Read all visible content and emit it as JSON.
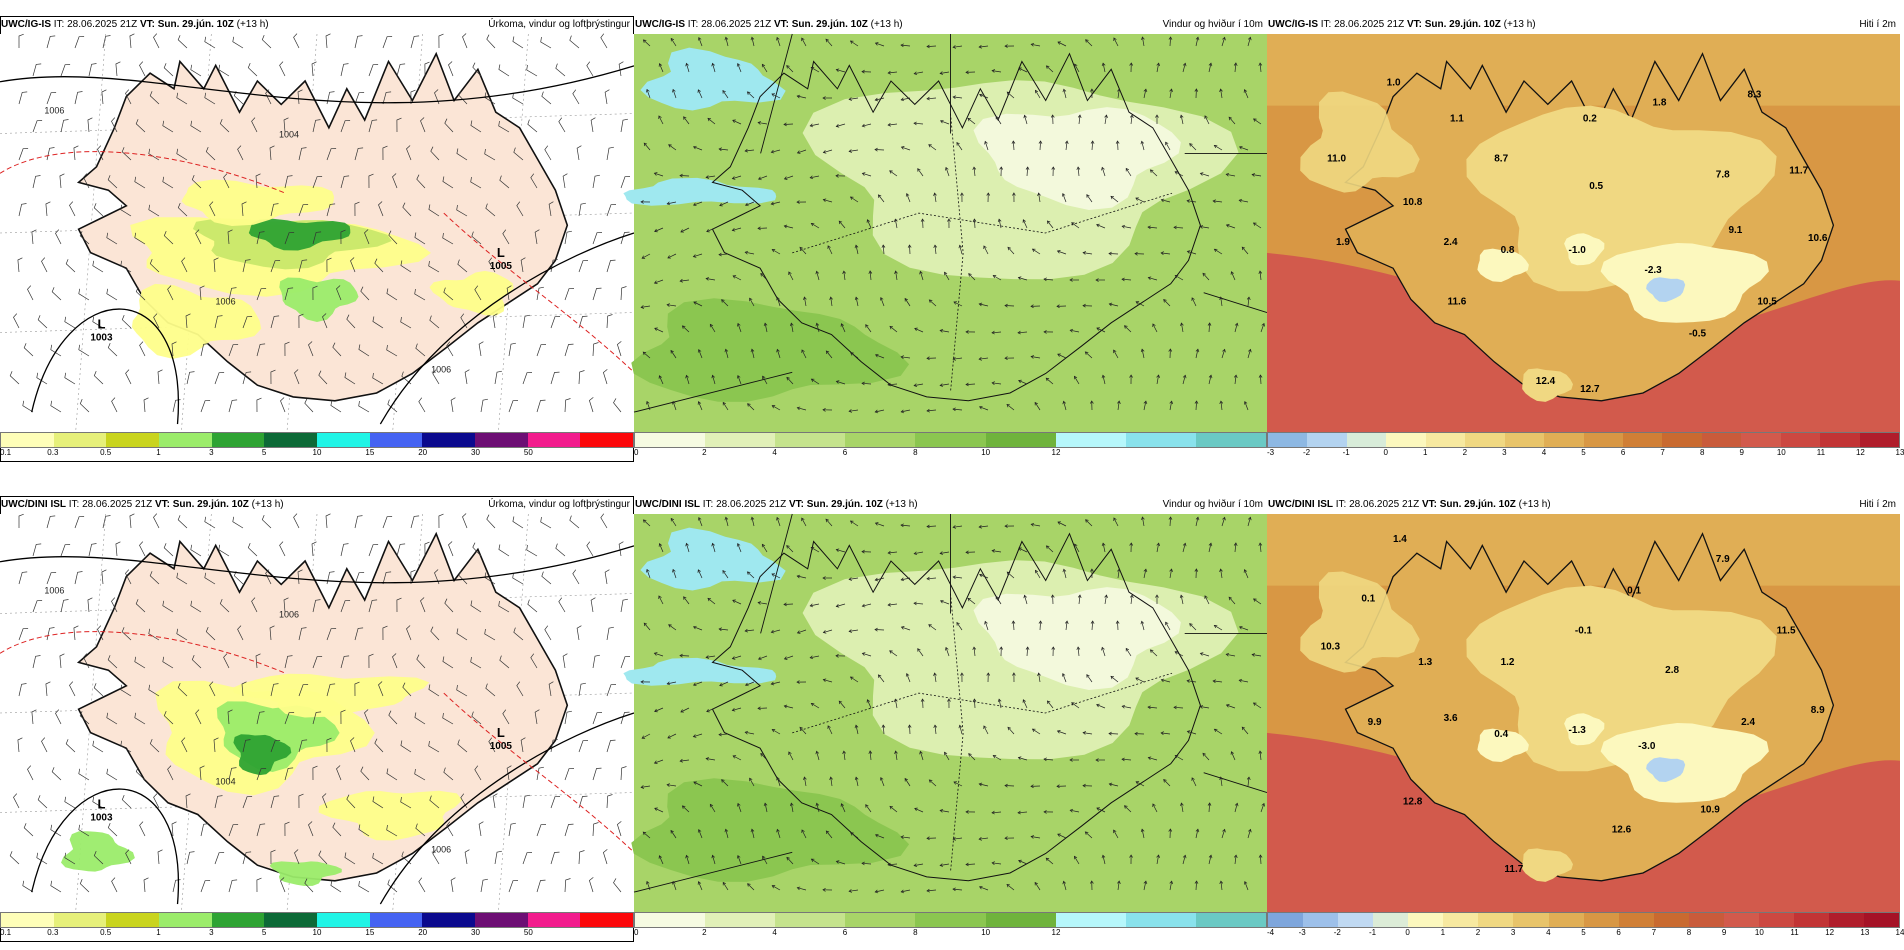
{
  "panels": [
    {
      "id": "p1",
      "header_left_model": "UWC/IG-IS",
      "header_left_rest": " IT: 28.06.2025 21Z ",
      "header_vt_label": "VT: Sun. 29.jún. 10Z",
      "header_lead": " (+13 h)",
      "header_right": "Úrkoma, vindur og loftþrýstingur",
      "type": "precip",
      "colorbar": {
        "colors": [
          "#fefeb8",
          "#e6f07a",
          "#c9d41e",
          "#9bec6a",
          "#2ea333",
          "#0d6a37",
          "#20f4e6",
          "#4563f2",
          "#0b0a8e",
          "#6d0e74",
          "#f21c8d",
          "#fc0709"
        ],
        "ticks": [
          "0.1",
          "0.3",
          "0.5",
          "1",
          "3",
          "5",
          "10",
          "15",
          "20",
          "30",
          "50"
        ]
      },
      "lows": [
        {
          "label": "L",
          "value": "1003"
        },
        {
          "label": "L",
          "value": "1005"
        }
      ],
      "isobars": [
        "1006",
        "1004",
        "1006",
        "1006"
      ]
    },
    {
      "id": "p2",
      "header_left_model": "UWC/IG-IS",
      "header_left_rest": " IT: 28.06.2025 21Z ",
      "header_vt_label": "VT: Sun. 29.jún. 10Z",
      "header_lead": " (+13 h)",
      "header_right": "Vindur og hviður í 10m",
      "type": "wind",
      "colorbar": {
        "colors": [
          "#f6fbe2",
          "#e1f0b8",
          "#c5e38d",
          "#a8d468",
          "#8bc650",
          "#6fb33c",
          "#b6f7fb",
          "#89e2ec",
          "#6ac9c4"
        ],
        "ticks": [
          "0",
          "2",
          "4",
          "6",
          "8",
          "10",
          "12"
        ]
      }
    },
    {
      "id": "p3",
      "header_left_model": "UWC/IG-IS",
      "header_left_rest": " IT: 28.06.2025 21Z ",
      "header_vt_label": "VT: Sun. 29.jún. 10Z",
      "header_lead": " (+13 h)",
      "header_right": "Hiti í 2m",
      "type": "temp",
      "colorbar": {
        "colors": [
          "#8db8e3",
          "#b3d3f0",
          "#d8ecd9",
          "#fcf8be",
          "#f7e9a0",
          "#f0d882",
          "#e8c46a",
          "#e0ae55",
          "#d89744",
          "#d07f36",
          "#c96a30",
          "#c95b3b",
          "#d25a4c",
          "#cc4841",
          "#c23435",
          "#b01d2b"
        ],
        "ticks": [
          "-3",
          "-2",
          "-1",
          "0",
          "1",
          "2",
          "3",
          "4",
          "5",
          "6",
          "7",
          "8",
          "9",
          "10",
          "11",
          "12",
          "13"
        ]
      },
      "values": [
        "1.0",
        "1.1",
        "0.2",
        "1.8",
        "8.3",
        "11.0",
        "8.7",
        "0.5",
        "7.8",
        "11.7",
        "10.8",
        "1.9",
        "2.4",
        "0.8",
        "-1.0",
        "9.1",
        "10.6",
        "-2.3",
        "11.6",
        "10.5",
        "-0.5",
        "12.4",
        "12.7"
      ]
    },
    {
      "id": "p4",
      "header_left_model": "UWC/DINI ISL",
      "header_left_rest": " IT: 28.06.2025 21Z ",
      "header_vt_label": "VT: Sun. 29.jún. 10Z",
      "header_lead": " (+13 h)",
      "header_right": "Úrkoma, vindur og loftþrýstingur",
      "type": "precip",
      "colorbar": {
        "colors": [
          "#fefeb8",
          "#e6f07a",
          "#c9d41e",
          "#9bec6a",
          "#2ea333",
          "#0d6a37",
          "#20f4e6",
          "#4563f2",
          "#0b0a8e",
          "#6d0e74",
          "#f21c8d",
          "#fc0709"
        ],
        "ticks": [
          "0.1",
          "0.3",
          "0.5",
          "1",
          "3",
          "5",
          "10",
          "15",
          "20",
          "30",
          "50"
        ]
      },
      "lows": [
        {
          "label": "L",
          "value": "1003"
        },
        {
          "label": "L",
          "value": "1005"
        }
      ],
      "isobars": [
        "1006",
        "1006",
        "1004",
        "1006"
      ]
    },
    {
      "id": "p5",
      "header_left_model": "UWC/DINI ISL",
      "header_left_rest": " IT: 28.06.2025 21Z ",
      "header_vt_label": "VT: Sun. 29.jún. 10Z",
      "header_lead": " (+13 h)",
      "header_right": "Vindur og hviður í 10m",
      "type": "wind",
      "colorbar": {
        "colors": [
          "#f6fbe2",
          "#e1f0b8",
          "#c5e38d",
          "#a8d468",
          "#8bc650",
          "#6fb33c",
          "#b6f7fb",
          "#89e2ec",
          "#6ac9c4"
        ],
        "ticks": [
          "0",
          "2",
          "4",
          "6",
          "8",
          "10",
          "12"
        ]
      }
    },
    {
      "id": "p6",
      "header_left_model": "UWC/DINI ISL",
      "header_left_rest": " IT: 28.06.2025 21Z ",
      "header_vt_label": "VT: Sun. 29.jún. 10Z",
      "header_lead": " (+13 h)",
      "header_right": "Hiti í 2m",
      "type": "temp",
      "colorbar": {
        "colors": [
          "#7ea6dc",
          "#9dc0ea",
          "#c0d9f2",
          "#dcecd7",
          "#fcf8be",
          "#f7e9a0",
          "#f0d882",
          "#e8c46a",
          "#e0ae55",
          "#d89744",
          "#d07f36",
          "#c96a30",
          "#c95b3b",
          "#d25a4c",
          "#cc4841",
          "#c23435",
          "#b01d2b",
          "#a51226"
        ],
        "ticks": [
          "-4",
          "-3",
          "-2",
          "-1",
          "0",
          "1",
          "2",
          "3",
          "4",
          "5",
          "6",
          "7",
          "8",
          "9",
          "10",
          "11",
          "12",
          "13",
          "14"
        ]
      },
      "values": [
        "1.4",
        "7.9",
        "0.1",
        "0.1",
        "11.5",
        "10.3",
        "-0.1",
        "1.3",
        "1.2",
        "2.8",
        "9.9",
        "3.6",
        "0.4",
        "-1.3",
        "-3.0",
        "2.4",
        "8.9",
        "12.8",
        "10.9",
        "12.6",
        "11.7"
      ]
    }
  ]
}
